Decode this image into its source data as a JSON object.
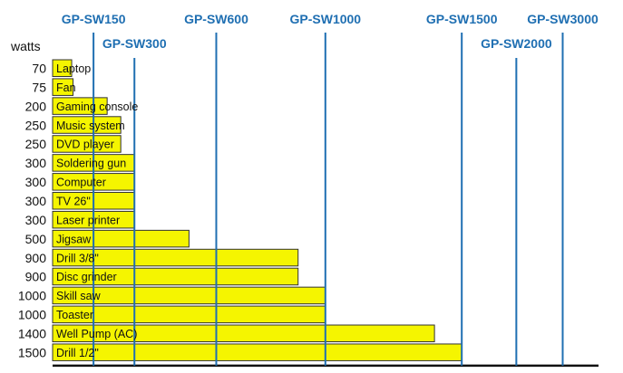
{
  "chart_data": {
    "type": "bar",
    "orientation": "horizontal",
    "ylabel": "watts",
    "categories": [
      "Laptop",
      "Fan",
      "Gaming console",
      "Music system",
      "DVD player",
      "Soldering gun",
      "Computer",
      "TV 26\"",
      "Laser printer",
      "Jigsaw",
      "Drill 3/8\"",
      "Disc grinder",
      "Skill saw",
      "Toaster",
      "Well Pump (AC)",
      "Drill 1/2\""
    ],
    "values": [
      70,
      75,
      200,
      250,
      250,
      300,
      300,
      300,
      300,
      500,
      900,
      900,
      1000,
      1000,
      1400,
      1500
    ],
    "value_labels": [
      "70",
      "75",
      "200",
      "250",
      "250",
      "300",
      "300",
      "300",
      "300",
      "500",
      "900",
      "900",
      "1000",
      "1000",
      "1400",
      "1500"
    ],
    "xlim": [
      0,
      1900
    ],
    "reference_lines": [
      {
        "name": "GP-SW150",
        "value": 150
      },
      {
        "name": "GP-SW300",
        "value": 300
      },
      {
        "name": "GP-SW600",
        "value": 600
      },
      {
        "name": "GP-SW1000",
        "value": 1000
      },
      {
        "name": "GP-SW1500",
        "value": 1500
      },
      {
        "name": "GP-SW2000",
        "value": 1700
      },
      {
        "name": "GP-SW3000",
        "value": 1870
      }
    ],
    "grid": false,
    "legend": "none"
  },
  "colors": {
    "bar_fill": "#f5f500",
    "bar_stroke": "#333333",
    "reference_line": "#1f6fb2",
    "model_label": "#1f6fb2",
    "text": "#111111"
  }
}
